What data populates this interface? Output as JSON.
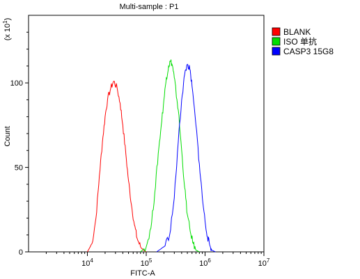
{
  "chart_data": {
    "type": "line",
    "title": "Multi-sample : P1",
    "xlabel": "FITC-A",
    "ylabel": "Count",
    "y_multiplier_label": {
      "prefix": "(x 10",
      "exp": "1",
      "suffix": ")"
    },
    "x_scale": "log",
    "xlim": [
      1000,
      10000000
    ],
    "ylim": [
      0,
      140
    ],
    "y_ticks": [
      0,
      50,
      100
    ],
    "x_ticks": [
      {
        "value": 10000,
        "base": "10",
        "exp": "4"
      },
      {
        "value": 100000,
        "base": "10",
        "exp": "5"
      },
      {
        "value": 1000000,
        "base": "10",
        "exp": "6"
      },
      {
        "value": 10000000,
        "base": "10",
        "exp": "7"
      }
    ],
    "legend_position": "right",
    "series": [
      {
        "name": "BLANK",
        "color": "#ff0000",
        "x": [
          10000,
          12000,
          14000,
          16000,
          18000,
          20000,
          22000,
          25000,
          28000,
          32000,
          36000,
          40000,
          45000,
          50000,
          56000,
          63000,
          70000,
          80000,
          90000,
          100000
        ],
        "y": [
          0,
          5,
          20,
          45,
          65,
          80,
          90,
          97,
          101,
          97,
          88,
          75,
          58,
          42,
          28,
          16,
          8,
          3,
          1,
          0
        ]
      },
      {
        "name": "ISO 单抗",
        "color": "#00dd00",
        "x": [
          80000,
          100000,
          120000,
          140000,
          160000,
          180000,
          200000,
          220000,
          240000,
          260000,
          280000,
          300000,
          320000,
          350000,
          400000,
          450000,
          500000,
          560000,
          630000,
          700000,
          800000
        ],
        "y": [
          0,
          3,
          14,
          35,
          58,
          75,
          90,
          103,
          110,
          113,
          110,
          103,
          95,
          84,
          60,
          38,
          22,
          12,
          5,
          1,
          0
        ]
      },
      {
        "name": "CASP3 15G8",
        "color": "#0000ff",
        "x": [
          150000,
          200000,
          250000,
          300000,
          350000,
          400000,
          450000,
          500000,
          550000,
          600000,
          700000,
          800000,
          900000,
          1000000,
          1100000,
          1200000,
          1300000,
          1500000
        ],
        "y": [
          0,
          3,
          10,
          32,
          65,
          90,
          105,
          111,
          108,
          98,
          75,
          52,
          32,
          18,
          9,
          4,
          1,
          0
        ]
      }
    ]
  }
}
